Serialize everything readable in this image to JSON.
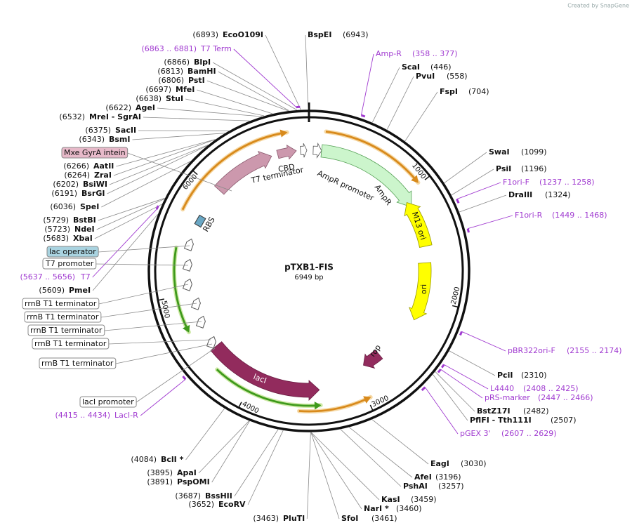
{
  "header": {
    "credit": "Created by SnapGene"
  },
  "map": {
    "name": "pTXB1-FIS",
    "length": {
      "value": 6949,
      "label": "6949 bp"
    },
    "ticks": [
      1000,
      2000,
      3000,
      4000,
      5000,
      6000
    ]
  },
  "sites": [
    {
      "name": "EcoO109I",
      "site": {
        "value": 6893,
        "label": "(6893)"
      }
    },
    {
      "name": "BlpI",
      "site": {
        "value": 6866,
        "label": "(6866)"
      }
    },
    {
      "name": "BamHI",
      "site": {
        "value": 6813,
        "label": "(6813)"
      }
    },
    {
      "name": "PstI",
      "site": {
        "value": 6806,
        "label": "(6806)"
      }
    },
    {
      "name": "MfeI",
      "site": {
        "value": 6697,
        "label": "(6697)"
      }
    },
    {
      "name": "StuI",
      "site": {
        "value": 6638,
        "label": "(6638)"
      }
    },
    {
      "name": "AgeI",
      "site": {
        "value": 6622,
        "label": "(6622)"
      }
    },
    {
      "name": "MreI  - SgrAI",
      "site": {
        "value": 6532,
        "label": "(6532)"
      }
    },
    {
      "name": "SacII",
      "site": {
        "value": 6375,
        "label": "(6375)"
      }
    },
    {
      "name": "BsmI",
      "site": {
        "value": 6343,
        "label": "(6343)"
      }
    },
    {
      "name": "AatII",
      "site": {
        "value": 6266,
        "label": "(6266)"
      }
    },
    {
      "name": "ZraI",
      "site": {
        "value": 6264,
        "label": "(6264)"
      }
    },
    {
      "name": "BsiWI",
      "site": {
        "value": 6202,
        "label": "(6202)"
      }
    },
    {
      "name": "BsrGI",
      "site": {
        "value": 6191,
        "label": "(6191)"
      }
    },
    {
      "name": "SpeI",
      "site": {
        "value": 6036,
        "label": "(6036)"
      }
    },
    {
      "name": "BstBI",
      "site": {
        "value": 5729,
        "label": "(5729)"
      }
    },
    {
      "name": "NdeI",
      "site": {
        "value": 5723,
        "label": "(5723)"
      }
    },
    {
      "name": "XbaI",
      "site": {
        "value": 5683,
        "label": "(5683)"
      }
    },
    {
      "name": "PmeI",
      "site": {
        "value": 5609,
        "label": "(5609)"
      }
    },
    {
      "name": "BclI *",
      "site": {
        "value": 4084,
        "label": "(4084)"
      }
    },
    {
      "name": "ApaI",
      "site": {
        "value": 3895,
        "label": "(3895)"
      }
    },
    {
      "name": "PspOMI",
      "site": {
        "value": 3891,
        "label": "(3891)"
      }
    },
    {
      "name": "BssHII",
      "site": {
        "value": 3687,
        "label": "(3687)"
      }
    },
    {
      "name": "EcoRV",
      "site": {
        "value": 3652,
        "label": "(3652)"
      }
    },
    {
      "name": "PluTI",
      "site": {
        "value": 3463,
        "label": "(3463)"
      }
    },
    {
      "name": "BspEI",
      "site": {
        "value": 6943,
        "label": "(6943)"
      }
    },
    {
      "name": "ScaI",
      "site": {
        "value": 446,
        "label": "(446)"
      }
    },
    {
      "name": "PvuI",
      "site": {
        "value": 558,
        "label": "(558)"
      }
    },
    {
      "name": "FspI",
      "site": {
        "value": 704,
        "label": "(704)"
      }
    },
    {
      "name": "SwaI",
      "site": {
        "value": 1099,
        "label": "(1099)"
      }
    },
    {
      "name": "PsiI",
      "site": {
        "value": 1196,
        "label": "(1196)"
      }
    },
    {
      "name": "DraIII",
      "site": {
        "value": 1324,
        "label": "(1324)"
      }
    },
    {
      "name": "PciI",
      "site": {
        "value": 2310,
        "label": "(2310)"
      }
    },
    {
      "name": "BstZ17I",
      "site": {
        "value": 2482,
        "label": "(2482)"
      }
    },
    {
      "name": "PflFI  - Tth111I",
      "site": {
        "value": 2507,
        "label": "(2507)"
      }
    },
    {
      "name": "EagI",
      "site": {
        "value": 3030,
        "label": "(3030)"
      }
    },
    {
      "name": "AfeI",
      "site": {
        "value": 3196,
        "label": "(3196)"
      }
    },
    {
      "name": "PshAI",
      "site": {
        "value": 3257,
        "label": "(3257)"
      }
    },
    {
      "name": "KasI",
      "site": {
        "value": 3459,
        "label": "(3459)"
      }
    },
    {
      "name": "NarI *",
      "site": {
        "value": 3460,
        "label": "(3460)"
      }
    },
    {
      "name": "SfoI",
      "site": {
        "value": 3461,
        "label": "(3461)"
      }
    }
  ],
  "primers": [
    {
      "name": "T7 Term",
      "range": {
        "start": 6863,
        "end": 6881,
        "label": "(6863 .. 6881)"
      }
    },
    {
      "name": "T7",
      "range": {
        "start": 5637,
        "end": 5656,
        "label": "(5637 .. 5656)"
      }
    },
    {
      "name": "LacI-R",
      "range": {
        "start": 4415,
        "end": 4434,
        "label": "(4415 .. 4434)"
      }
    },
    {
      "name": "Amp-R",
      "range": {
        "start": 358,
        "end": 377,
        "label": "(358 .. 377)"
      }
    },
    {
      "name": "F1ori-F",
      "range": {
        "start": 1237,
        "end": 1258,
        "label": "(1237 .. 1258)"
      }
    },
    {
      "name": "F1ori-R",
      "range": {
        "start": 1449,
        "end": 1468,
        "label": "(1449 .. 1468)"
      }
    },
    {
      "name": "pBR322ori-F",
      "range": {
        "start": 2155,
        "end": 2174,
        "label": "(2155 .. 2174)"
      }
    },
    {
      "name": "L4440",
      "range": {
        "start": 2408,
        "end": 2425,
        "label": "(2408 .. 2425)"
      }
    },
    {
      "name": "pRS-marker",
      "range": {
        "start": 2447,
        "end": 2466,
        "label": "(2447 .. 2466)"
      }
    },
    {
      "name": "pGEX 3'",
      "range": {
        "start": 2607,
        "end": 2629,
        "label": "(2607 .. 2629)"
      }
    }
  ],
  "callouts": [
    "Mxe GyrA intein",
    "lac operator",
    "T7 promoter",
    "rrnB T1 terminator",
    "rrnB T1 terminator",
    "rrnB T1 terminator",
    "rrnB T1 terminator",
    "rrnB T1 terminator",
    "lacI promoter"
  ],
  "features": [
    "CBD",
    "T7 terminator",
    "AmpR promoter",
    "AmpR",
    "M13 ori",
    "ori",
    "rop",
    "lacI",
    "RBS"
  ]
}
